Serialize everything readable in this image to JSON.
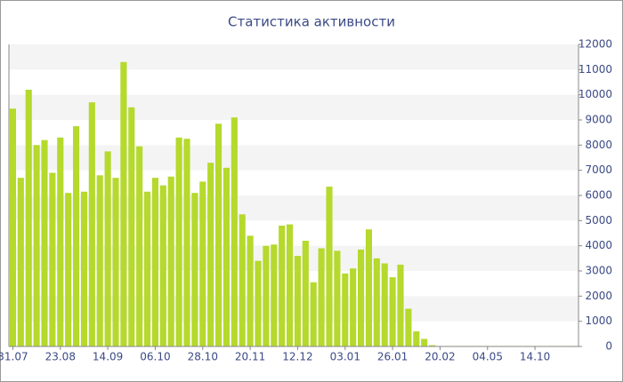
{
  "chart_data": {
    "type": "bar",
    "title": "Статистика активности",
    "categories": [
      "31.07",
      null,
      null,
      null,
      null,
      null,
      "23.08",
      null,
      null,
      null,
      null,
      null,
      "14.09",
      null,
      null,
      null,
      null,
      null,
      "06.10",
      null,
      null,
      null,
      null,
      null,
      "28.10",
      null,
      null,
      null,
      null,
      null,
      "20.11",
      null,
      null,
      null,
      null,
      null,
      "12.12",
      null,
      null,
      null,
      null,
      null,
      "03.01",
      null,
      null,
      null,
      null,
      null,
      "26.01",
      null,
      null,
      null,
      null,
      null,
      "20.02",
      null,
      null,
      null,
      null,
      null,
      "04.05",
      null,
      null,
      null,
      null,
      null,
      "14.10",
      null,
      null,
      null,
      null,
      null
    ],
    "values": [
      9450,
      6700,
      10200,
      8000,
      8200,
      6900,
      8300,
      6100,
      8750,
      6150,
      9700,
      6800,
      7750,
      6700,
      11300,
      9500,
      7950,
      6150,
      6700,
      6400,
      6750,
      8300,
      8250,
      6100,
      6550,
      7300,
      8850,
      7100,
      9100,
      5250,
      4400,
      3400,
      4000,
      4050,
      4800,
      4850,
      3600,
      4200,
      2550,
      3900,
      6350,
      3800,
      2900,
      3100,
      3850,
      4650,
      3500,
      3300,
      2750,
      3250,
      1500,
      600,
      300,
      50,
      20,
      20,
      20,
      20,
      20,
      20,
      20,
      20,
      20,
      20,
      20,
      20,
      20,
      20,
      20,
      20,
      20,
      20
    ],
    "color": "#b5d92c",
    "ylim": [
      0,
      12000
    ],
    "yticks": [
      0,
      1000,
      2000,
      3000,
      4000,
      5000,
      6000,
      7000,
      8000,
      9000,
      10000,
      11000,
      12000
    ],
    "grid": true
  }
}
